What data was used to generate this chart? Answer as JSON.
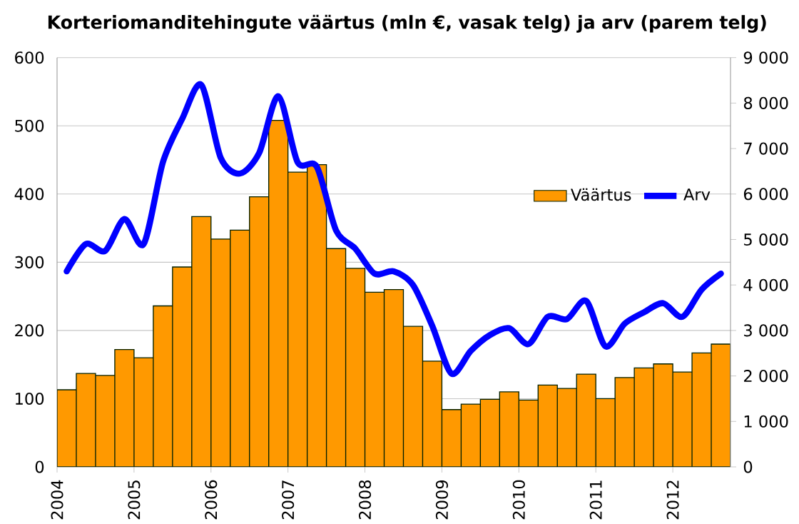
{
  "chart_data": {
    "type": "bar",
    "title": "Korteriomanditehingute väärtus (mln €, vasak telg) ja arv (parem telg)",
    "x": [
      2004.125,
      2004.375,
      2004.625,
      2004.875,
      2005.125,
      2005.375,
      2005.625,
      2005.875,
      2006.125,
      2006.375,
      2006.625,
      2006.875,
      2007.125,
      2007.375,
      2007.625,
      2007.875,
      2008.125,
      2008.375,
      2008.625,
      2008.875,
      2009.125,
      2009.375,
      2009.625,
      2009.875,
      2010.125,
      2010.375,
      2010.625,
      2010.875,
      2011.125,
      2011.375,
      2011.625,
      2011.875,
      2012.125,
      2012.375,
      2012.625
    ],
    "xlim": [
      2004,
      2012.75
    ],
    "xticks": [
      2004,
      2005,
      2006,
      2007,
      2008,
      2009,
      2010,
      2011,
      2012
    ],
    "ylim": [
      0,
      600
    ],
    "yticks": [
      0,
      100,
      200,
      300,
      400,
      500,
      600
    ],
    "y2lim": [
      0,
      9000
    ],
    "y2ticks": [
      0,
      {
        "value": 1000,
        "label": "1 000"
      },
      {
        "value": 2000,
        "label": "2 000"
      },
      {
        "value": 3000,
        "label": "3 000"
      },
      {
        "value": 4000,
        "label": "4 000"
      },
      {
        "value": 5000,
        "label": "5 000"
      },
      {
        "value": 6000,
        "label": "6 000"
      },
      {
        "value": 7000,
        "label": "7 000"
      },
      {
        "value": 8000,
        "label": "8 000"
      },
      {
        "value": 9000,
        "label": "9 000"
      }
    ],
    "series": [
      {
        "name": "Väärtus",
        "color": "#ff9900",
        "values": [
          113,
          137,
          134,
          172,
          160,
          236,
          293,
          367,
          334,
          347,
          396,
          508,
          432,
          443,
          320,
          291,
          256,
          260,
          206,
          155,
          84,
          92,
          99,
          110,
          98,
          120,
          115,
          136,
          100,
          131,
          145,
          151,
          139,
          167,
          180
        ]
      },
      {
        "name": "Arv",
        "type": "line",
        "axis": "y2",
        "color": "#0000ff",
        "values": [
          4300,
          4900,
          4750,
          5450,
          4900,
          6700,
          7650,
          8400,
          6800,
          6450,
          6900,
          8150,
          6700,
          6600,
          5200,
          4800,
          4250,
          4300,
          4000,
          3100,
          2050,
          2550,
          2900,
          3050,
          2700,
          3300,
          3250,
          3650,
          2650,
          3150,
          3400,
          3600,
          3300,
          3900,
          4250
        ]
      }
    ],
    "grid": "y",
    "legend": "right",
    "marker": "none",
    "line_style": "solid"
  }
}
